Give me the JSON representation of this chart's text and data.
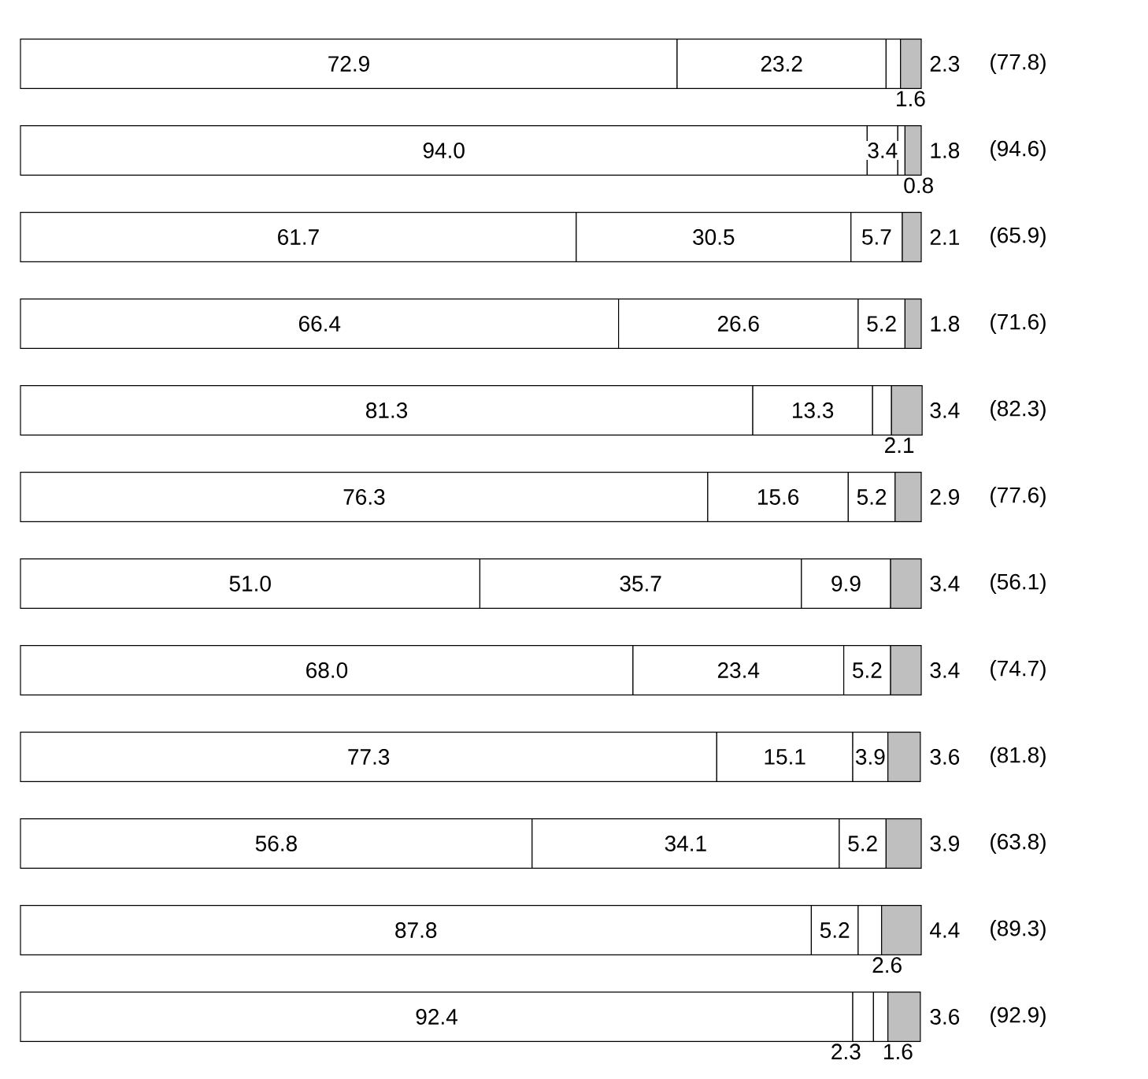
{
  "chart_data": {
    "type": "bar",
    "orientation": "horizontal",
    "stacked": true,
    "data_labels": true,
    "categories": [
      null,
      null,
      null,
      null,
      null,
      null,
      null,
      null,
      null,
      null,
      null,
      null
    ],
    "series": [
      {
        "color": "#ffffff",
        "values": [
          72.9,
          94.0,
          61.7,
          66.4,
          81.3,
          76.3,
          51.0,
          68.0,
          77.3,
          56.8,
          87.8,
          92.4
        ],
        "value_labels": [
          "72.9",
          "94.0",
          "61.7",
          "66.4",
          "81.3",
          "76.3",
          "51.0",
          "68.0",
          "77.3",
          "56.8",
          "87.8",
          "92.4"
        ]
      },
      {
        "color": "#ffffff",
        "values": [
          23.2,
          3.4,
          30.5,
          26.6,
          13.3,
          15.6,
          35.7,
          23.4,
          15.1,
          34.1,
          5.2,
          2.3
        ],
        "value_labels": [
          "23.2",
          "3.4",
          "30.5",
          "26.6",
          "13.3",
          "15.6",
          "35.7",
          "23.4",
          "15.1",
          "34.1",
          "5.2",
          "2.3"
        ]
      },
      {
        "color": "#ffffff",
        "values": [
          1.6,
          0.8,
          5.7,
          5.2,
          2.1,
          5.2,
          9.9,
          5.2,
          3.9,
          5.2,
          2.6,
          1.6
        ],
        "value_labels": [
          "1.6",
          "0.8",
          "5.7",
          "5.2",
          "2.1",
          "5.2",
          "9.9",
          "5.2",
          "3.9",
          "5.2",
          "2.6",
          "1.6"
        ]
      },
      {
        "color": "#bfbfbf",
        "values": [
          2.3,
          1.8,
          2.1,
          1.8,
          3.4,
          2.9,
          3.4,
          3.4,
          3.6,
          3.9,
          4.4,
          3.6
        ],
        "value_labels": [
          "2.3",
          "1.8",
          "2.1",
          "1.8",
          "3.4",
          "2.9",
          "3.4",
          "3.4",
          "3.6",
          "3.9",
          "4.4",
          "3.6"
        ]
      }
    ],
    "annotations": [
      "(77.8)",
      "(94.6)",
      "(65.9)",
      "(71.6)",
      "(82.3)",
      "(77.6)",
      "(56.1)",
      "(74.7)",
      "(81.8)",
      "(63.8)",
      "(89.3)",
      "(92.9)"
    ]
  }
}
